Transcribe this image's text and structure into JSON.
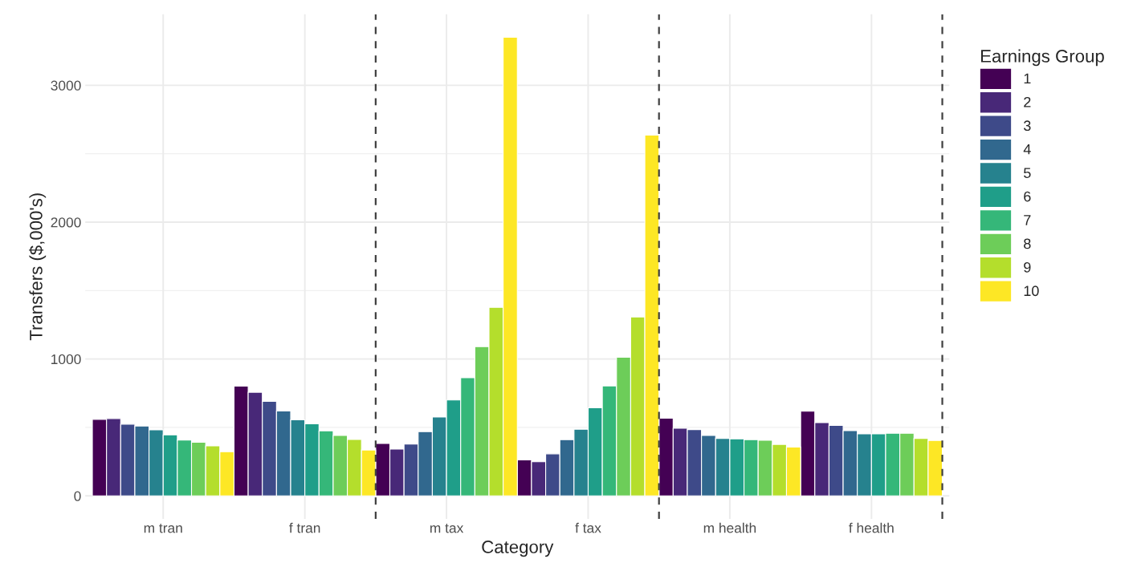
{
  "chart_data": {
    "type": "bar",
    "xlabel": "Category",
    "ylabel": "Transfers ($,000's)",
    "legend_title": "Earnings Group",
    "categories": [
      "m tran",
      "f tran",
      "m tax",
      "f tax",
      "m health",
      "f health"
    ],
    "series": [
      {
        "name": "1",
        "color": "#440154",
        "values": [
          559,
          802,
          383,
          262,
          567,
          618
        ]
      },
      {
        "name": "2",
        "color": "#482878",
        "values": [
          565,
          757,
          341,
          249,
          494,
          535
        ]
      },
      {
        "name": "3",
        "color": "#3e4a89",
        "values": [
          524,
          691,
          379,
          307,
          484,
          514
        ]
      },
      {
        "name": "4",
        "color": "#31688e",
        "values": [
          510,
          620,
          469,
          410,
          441,
          476
        ]
      },
      {
        "name": "5",
        "color": "#26828e",
        "values": [
          482,
          555,
          576,
          487,
          420,
          453
        ]
      },
      {
        "name": "6",
        "color": "#1f9e89",
        "values": [
          445,
          526,
          700,
          643,
          416,
          453
        ]
      },
      {
        "name": "7",
        "color": "#35b779",
        "values": [
          408,
          475,
          863,
          803,
          410,
          457
        ]
      },
      {
        "name": "8",
        "color": "#6dcd59",
        "values": [
          392,
          441,
          1090,
          1013,
          406,
          457
        ]
      },
      {
        "name": "9",
        "color": "#b4de2c",
        "values": [
          365,
          412,
          1377,
          1307,
          376,
          420
        ]
      },
      {
        "name": "10",
        "color": "#fde725",
        "values": [
          322,
          335,
          3352,
          2637,
          357,
          404
        ]
      }
    ],
    "ylim": [
      -168,
      3520
    ],
    "yticks": [
      0,
      1000,
      2000,
      3000
    ],
    "grid": true,
    "legend": "right"
  }
}
